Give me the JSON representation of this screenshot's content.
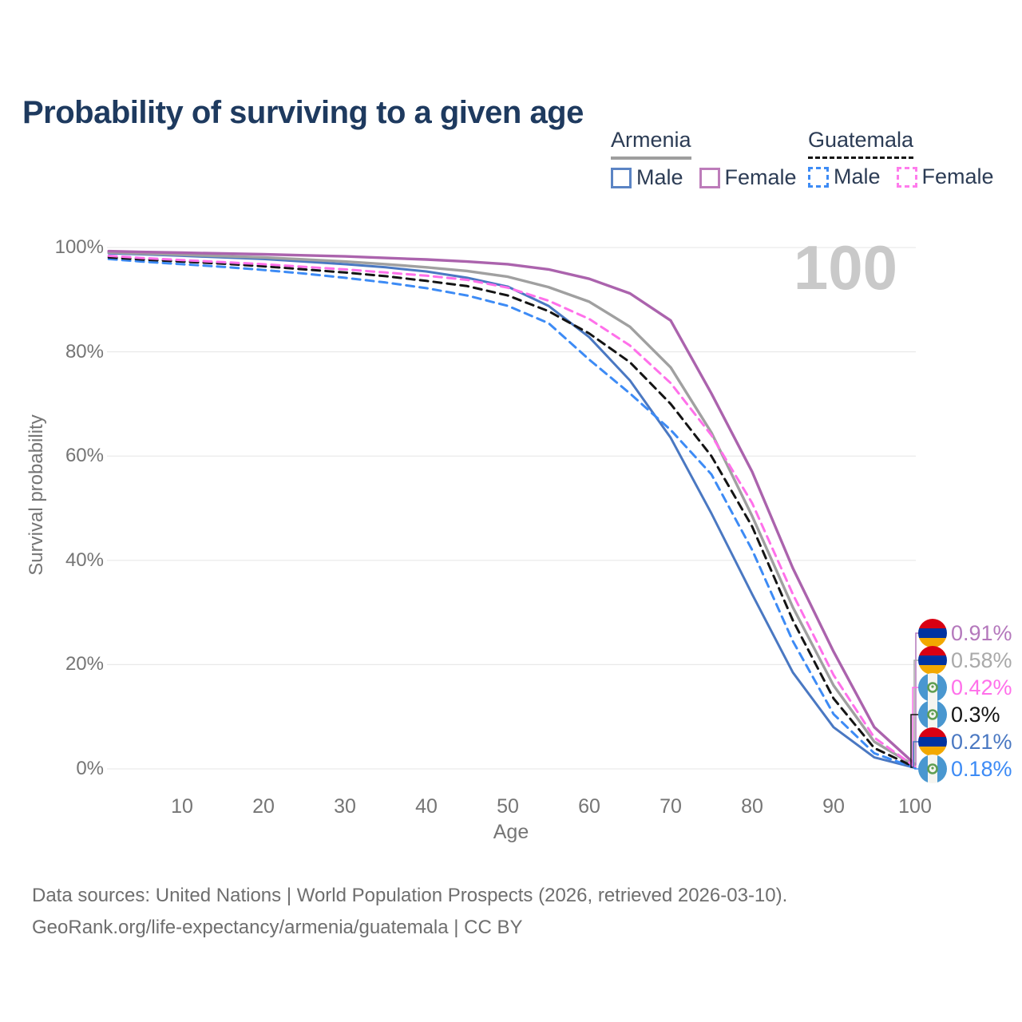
{
  "page": {
    "title": "Probability of surviving to a given age",
    "watermark_age": "100"
  },
  "legend": {
    "groups": [
      {
        "country": "Armenia",
        "line_style": "solid",
        "underline_color": "#9e9e9e",
        "items": [
          {
            "label": "Male",
            "color": "#5b84c4",
            "dashed": false
          },
          {
            "label": "Female",
            "color": "#bd7cba",
            "dashed": false
          }
        ]
      },
      {
        "country": "Guatemala",
        "line_style": "dashed",
        "underline_color": "#141414",
        "items": [
          {
            "label": "Male",
            "color": "#3d8bf5",
            "dashed": true
          },
          {
            "label": "Female",
            "color": "#ff7cec",
            "dashed": true
          }
        ]
      }
    ]
  },
  "chart_data": {
    "type": "line",
    "title": "Probability of surviving to a given age",
    "xlabel": "Age",
    "ylabel": "Survival probability",
    "xlim": [
      0,
      100
    ],
    "ylim": [
      0,
      100
    ],
    "x_ticks": [
      10,
      20,
      30,
      40,
      50,
      60,
      70,
      80,
      90,
      100
    ],
    "y_ticks": [
      {
        "value": 0,
        "label": "0%"
      },
      {
        "value": 20,
        "label": "20%"
      },
      {
        "value": 40,
        "label": "40%"
      },
      {
        "value": 60,
        "label": "60%"
      },
      {
        "value": 80,
        "label": "80%"
      },
      {
        "value": 100,
        "label": "100%"
      }
    ],
    "grid": "horizontal",
    "legend_position": "top-right",
    "hovered_age": 100,
    "series": [
      {
        "id": "armenia-male",
        "name": "Armenia Male",
        "country": "Armenia",
        "sex": "Male",
        "color": "#4a78c2",
        "dashed": false,
        "width": 3,
        "end_value_pct": 0.21,
        "points": [
          [
            1,
            98.9
          ],
          [
            5,
            98.7
          ],
          [
            10,
            98.4
          ],
          [
            15,
            98.1
          ],
          [
            20,
            97.8
          ],
          [
            25,
            97.3
          ],
          [
            30,
            96.8
          ],
          [
            35,
            96.2
          ],
          [
            40,
            95.4
          ],
          [
            45,
            94.2
          ],
          [
            50,
            92.5
          ],
          [
            55,
            88.8
          ],
          [
            60,
            82.8
          ],
          [
            65,
            74.5
          ],
          [
            70,
            63.5
          ],
          [
            75,
            49.0
          ],
          [
            80,
            33.5
          ],
          [
            85,
            18.5
          ],
          [
            90,
            8.0
          ],
          [
            95,
            2.2
          ],
          [
            100,
            0.21
          ]
        ]
      },
      {
        "id": "armenia-total",
        "name": "Armenia (both sexes)",
        "country": "Armenia",
        "sex": "Both",
        "color": "#a0a0a0",
        "dashed": false,
        "width": 3.4,
        "end_value_pct": 0.58,
        "points": [
          [
            1,
            99.05
          ],
          [
            5,
            98.85
          ],
          [
            10,
            98.6
          ],
          [
            15,
            98.35
          ],
          [
            20,
            98.1
          ],
          [
            25,
            97.7
          ],
          [
            30,
            97.3
          ],
          [
            35,
            96.8
          ],
          [
            40,
            96.2
          ],
          [
            45,
            95.5
          ],
          [
            50,
            94.4
          ],
          [
            55,
            92.4
          ],
          [
            60,
            89.6
          ],
          [
            65,
            84.8
          ],
          [
            70,
            77.0
          ],
          [
            75,
            64.5
          ],
          [
            80,
            48.5
          ],
          [
            85,
            31.0
          ],
          [
            90,
            16.0
          ],
          [
            95,
            5.2
          ],
          [
            100,
            0.58
          ]
        ]
      },
      {
        "id": "armenia-female",
        "name": "Armenia Female",
        "country": "Armenia",
        "sex": "Female",
        "color": "#ab63ad",
        "dashed": false,
        "width": 3.4,
        "end_value_pct": 0.91,
        "points": [
          [
            1,
            99.3
          ],
          [
            5,
            99.15
          ],
          [
            10,
            99.0
          ],
          [
            15,
            98.85
          ],
          [
            20,
            98.7
          ],
          [
            25,
            98.5
          ],
          [
            30,
            98.3
          ],
          [
            35,
            98.0
          ],
          [
            40,
            97.7
          ],
          [
            45,
            97.3
          ],
          [
            50,
            96.8
          ],
          [
            55,
            95.8
          ],
          [
            60,
            94.0
          ],
          [
            65,
            91.2
          ],
          [
            70,
            86.0
          ],
          [
            75,
            72.0
          ],
          [
            80,
            57.0
          ],
          [
            85,
            38.5
          ],
          [
            90,
            22.5
          ],
          [
            95,
            8.0
          ],
          [
            100,
            0.91
          ]
        ]
      },
      {
        "id": "guatemala-male",
        "name": "Guatemala Male",
        "country": "Guatemala",
        "sex": "Male",
        "color": "#3d8bf5",
        "dashed": true,
        "width": 3,
        "end_value_pct": 0.18,
        "points": [
          [
            1,
            97.8
          ],
          [
            5,
            97.3
          ],
          [
            10,
            96.8
          ],
          [
            15,
            96.3
          ],
          [
            20,
            95.7
          ],
          [
            25,
            95.0
          ],
          [
            30,
            94.2
          ],
          [
            35,
            93.3
          ],
          [
            40,
            92.2
          ],
          [
            45,
            90.8
          ],
          [
            50,
            88.8
          ],
          [
            55,
            85.5
          ],
          [
            60,
            78.5
          ],
          [
            65,
            72.0
          ],
          [
            70,
            65.0
          ],
          [
            75,
            56.5
          ],
          [
            80,
            42.0
          ],
          [
            85,
            24.5
          ],
          [
            90,
            10.5
          ],
          [
            95,
            3.0
          ],
          [
            100,
            0.18
          ]
        ]
      },
      {
        "id": "guatemala-total",
        "name": "Guatemala (both sexes)",
        "country": "Guatemala",
        "sex": "Both",
        "color": "#141414",
        "dashed": true,
        "width": 3,
        "end_value_pct": 0.3,
        "points": [
          [
            1,
            98.1
          ],
          [
            5,
            97.7
          ],
          [
            10,
            97.3
          ],
          [
            15,
            96.9
          ],
          [
            20,
            96.4
          ],
          [
            25,
            95.8
          ],
          [
            30,
            95.2
          ],
          [
            35,
            94.5
          ],
          [
            40,
            93.6
          ],
          [
            45,
            92.6
          ],
          [
            50,
            90.8
          ],
          [
            55,
            87.8
          ],
          [
            60,
            83.5
          ],
          [
            65,
            78.0
          ],
          [
            70,
            70.0
          ],
          [
            75,
            60.0
          ],
          [
            80,
            46.5
          ],
          [
            85,
            28.5
          ],
          [
            90,
            13.5
          ],
          [
            95,
            4.0
          ],
          [
            100,
            0.3
          ]
        ]
      },
      {
        "id": "guatemala-female",
        "name": "Guatemala Female",
        "country": "Guatemala",
        "sex": "Female",
        "color": "#ff70ea",
        "dashed": true,
        "width": 3,
        "end_value_pct": 0.42,
        "points": [
          [
            1,
            98.4
          ],
          [
            5,
            98.0
          ],
          [
            10,
            97.6
          ],
          [
            15,
            97.2
          ],
          [
            20,
            96.8
          ],
          [
            25,
            96.3
          ],
          [
            30,
            95.8
          ],
          [
            35,
            95.2
          ],
          [
            40,
            94.6
          ],
          [
            45,
            93.8
          ],
          [
            50,
            92.3
          ],
          [
            55,
            89.8
          ],
          [
            60,
            86.3
          ],
          [
            65,
            81.2
          ],
          [
            70,
            74.0
          ],
          [
            75,
            64.0
          ],
          [
            80,
            51.0
          ],
          [
            85,
            33.5
          ],
          [
            90,
            18.0
          ],
          [
            95,
            6.0
          ],
          [
            100,
            0.42
          ]
        ]
      }
    ]
  },
  "end_labels": [
    {
      "label": "0.91%",
      "value": 0.91,
      "series": "armenia-female",
      "flag": "armenia",
      "color": "#b478bc"
    },
    {
      "label": "0.58%",
      "value": 0.58,
      "series": "armenia-total",
      "flag": "armenia",
      "color": "#a9a9a9"
    },
    {
      "label": "0.42%",
      "value": 0.42,
      "series": "guatemala-female",
      "flag": "guatemala",
      "color": "#ff70ea"
    },
    {
      "label": "0.3%",
      "value": 0.3,
      "series": "guatemala-total",
      "flag": "guatemala",
      "color": "#141414"
    },
    {
      "label": "0.21%",
      "value": 0.21,
      "series": "armenia-male",
      "flag": "armenia",
      "color": "#4a78c2"
    },
    {
      "label": "0.18%",
      "value": 0.18,
      "series": "guatemala-male",
      "flag": "guatemala",
      "color": "#3d8bf5"
    }
  ],
  "footer": {
    "line1": "Data sources: United Nations | World Population Prospects (2026, retrieved 2026-03-10).",
    "line2": "GeoRank.org/life-expectancy/armenia/guatemala | CC BY"
  }
}
